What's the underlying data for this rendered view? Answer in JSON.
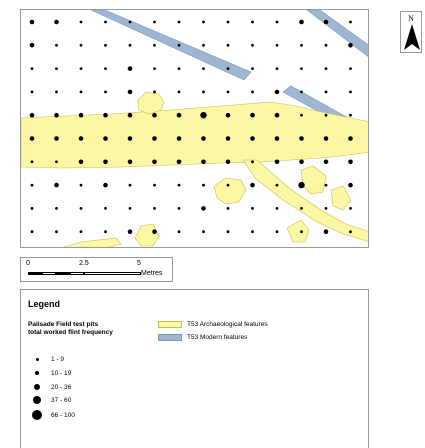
{
  "map": {
    "grid_columns": 14,
    "grid_rows": 10,
    "frequency_class_grid": [
      [
        2,
        2,
        1,
        1,
        1,
        1,
        1,
        1,
        1,
        1,
        1,
        2,
        2,
        1
      ],
      [
        2,
        1,
        1,
        1,
        1,
        1,
        1,
        1,
        1,
        1,
        1,
        1,
        1,
        2
      ],
      [
        1,
        1,
        1,
        1,
        2,
        1,
        1,
        1,
        1,
        1,
        1,
        1,
        1,
        1
      ],
      [
        1,
        1,
        1,
        1,
        2,
        1,
        1,
        1,
        1,
        1,
        2,
        1,
        1,
        1
      ],
      [
        2,
        2,
        2,
        2,
        2,
        2,
        2,
        3,
        2,
        2,
        2,
        1,
        1,
        1
      ],
      [
        2,
        2,
        2,
        2,
        2,
        2,
        2,
        2,
        2,
        2,
        2,
        2,
        2,
        2
      ],
      [
        1,
        1,
        2,
        2,
        2,
        2,
        2,
        2,
        2,
        1,
        2,
        2,
        2,
        2
      ],
      [
        1,
        2,
        1,
        2,
        1,
        1,
        1,
        1,
        1,
        2,
        1,
        3,
        1,
        2
      ],
      [
        1,
        1,
        1,
        1,
        1,
        1,
        1,
        2,
        1,
        1,
        1,
        1,
        1,
        1
      ],
      [
        1,
        1,
        1,
        1,
        2,
        2,
        1,
        1,
        1,
        1,
        1,
        1,
        2,
        1
      ]
    ],
    "colors": {
      "archaeological_fill": "#fbf7a4",
      "archaeological_stroke": "#c8c04e",
      "modern_fill": "#9fb6d3",
      "modern_stroke": "#7e98ba",
      "dot": "#000000"
    }
  },
  "north_arrow": {
    "label": "N"
  },
  "scale_bar": {
    "ticks": [
      "0",
      "2.5",
      "5"
    ],
    "unit": "Metres"
  },
  "legend": {
    "title": "Legend",
    "layer_title_line1": "Palisade Field test pits",
    "layer_title_line2": "total worked flint frequency",
    "features": [
      {
        "label": "T53 Archaeological features",
        "color": "#fbf7a4"
      },
      {
        "label": "T53 Modern features",
        "color": "#9fb6d3"
      }
    ],
    "classes": [
      {
        "label": "1 - 9"
      },
      {
        "label": "10 - 19"
      },
      {
        "label": "20 - 36"
      },
      {
        "label": "37 - 60"
      },
      {
        "label": "66 - 100"
      }
    ]
  }
}
